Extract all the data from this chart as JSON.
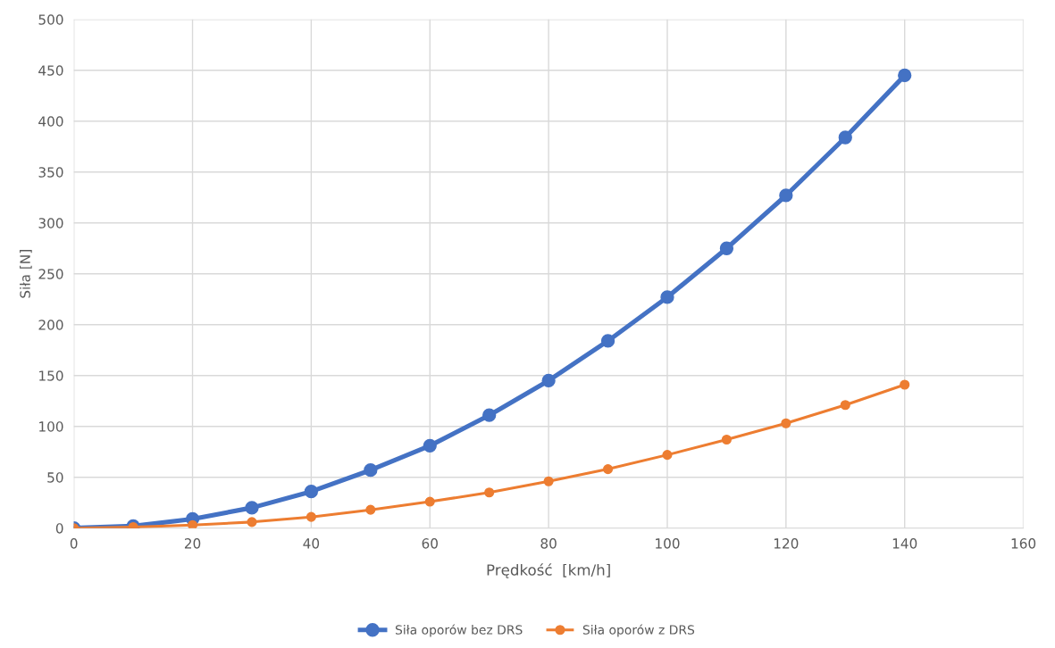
{
  "chart_data": {
    "type": "line",
    "xlabel": "Prędkość  [km/h]",
    "ylabel": "Siła [N]",
    "x": [
      0,
      10,
      20,
      30,
      40,
      50,
      60,
      70,
      80,
      90,
      100,
      110,
      120,
      130,
      140
    ],
    "series": [
      {
        "name": "Siła oporów bez DRS",
        "color": "#4472c4",
        "values": [
          0,
          2,
          9,
          20,
          36,
          57,
          81,
          111,
          145,
          184,
          227,
          275,
          327,
          384,
          445
        ]
      },
      {
        "name": "Siła oporów z DRS",
        "color": "#ed7d31",
        "values": [
          0,
          1,
          3,
          6,
          11,
          18,
          26,
          35,
          46,
          58,
          72,
          87,
          103,
          121,
          141
        ]
      }
    ],
    "xlim": [
      0,
      160
    ],
    "xticks": [
      0,
      20,
      40,
      60,
      80,
      100,
      120,
      140,
      160
    ],
    "ylim": [
      0,
      500
    ],
    "yticks": [
      0,
      50,
      100,
      150,
      200,
      250,
      300,
      350,
      400,
      450,
      500
    ],
    "grid": true,
    "legend": "bottom",
    "marker": "circle",
    "line_style": "solid"
  }
}
